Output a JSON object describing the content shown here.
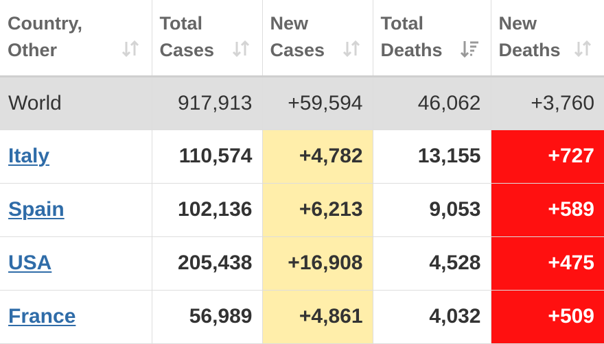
{
  "table": {
    "headers": [
      {
        "label": "Country, Other",
        "sort": "unsorted"
      },
      {
        "label": "Total Cases",
        "sort": "unsorted"
      },
      {
        "label": "New Cases",
        "sort": "unsorted"
      },
      {
        "label": "Total Deaths",
        "sort": "descending"
      },
      {
        "label": "New Deaths",
        "sort": "unsorted"
      }
    ],
    "world": {
      "country": "World",
      "total_cases": "917,913",
      "new_cases": "+59,594",
      "total_deaths": "46,062",
      "new_deaths": "+3,760"
    },
    "rows": [
      {
        "country": "Italy",
        "total_cases": "110,574",
        "new_cases": "+4,782",
        "total_deaths": "13,155",
        "new_deaths": "+727"
      },
      {
        "country": "Spain",
        "total_cases": "102,136",
        "new_cases": "+6,213",
        "total_deaths": "9,053",
        "new_deaths": "+589"
      },
      {
        "country": "USA",
        "total_cases": "205,438",
        "new_cases": "+16,908",
        "total_deaths": "4,528",
        "new_deaths": "+475"
      },
      {
        "country": "France",
        "total_cases": "56,989",
        "new_cases": "+4,861",
        "total_deaths": "4,032",
        "new_deaths": "+509"
      }
    ]
  },
  "colors": {
    "header_text": "#666666",
    "link": "#2f6ca8",
    "world_row_bg": "#dfdfdf",
    "new_cases_bg": "#ffeeaa",
    "new_deaths_bg": "#ff1010",
    "sort_icon_inactive": "#d4d4d4",
    "sort_icon_active": "#999999"
  }
}
